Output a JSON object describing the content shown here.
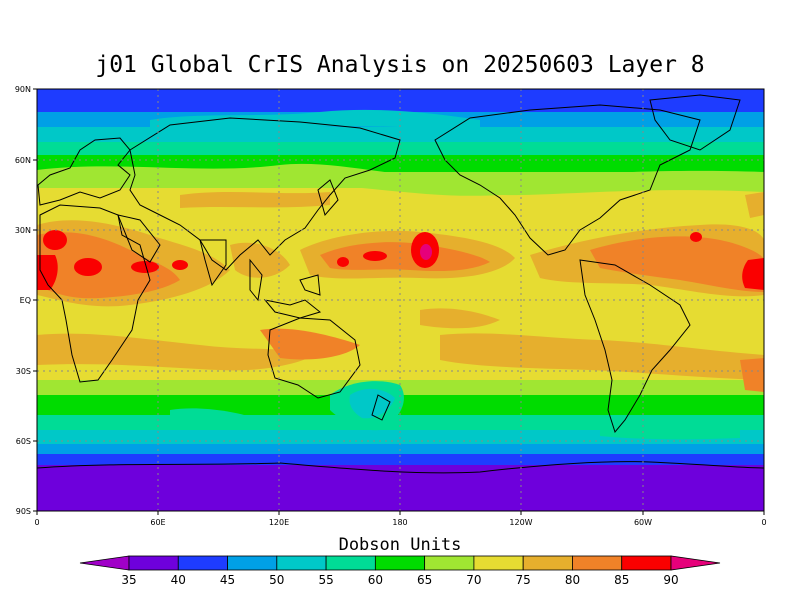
{
  "title": "j01 Global CrIS Analysis on 20250603 Layer 8",
  "lat_labels": [
    "90N",
    "60N",
    "30N",
    "EQ",
    "30S",
    "60S",
    "90S"
  ],
  "lon_labels": [
    "0",
    "60E",
    "120E",
    "180",
    "120W",
    "60W",
    "0"
  ],
  "colorbar": {
    "title": "Dobson Units",
    "levels": [
      35,
      40,
      45,
      50,
      55,
      60,
      65,
      70,
      75,
      80,
      85,
      90
    ],
    "colors": [
      "#a000c8",
      "#6e00dc",
      "#1e3cff",
      "#00a0e6",
      "#00c8c8",
      "#00dc96",
      "#00dc00",
      "#a0e632",
      "#e6dc32",
      "#e6af2d",
      "#f08228",
      "#fa0000",
      "#e6007a"
    ]
  }
}
